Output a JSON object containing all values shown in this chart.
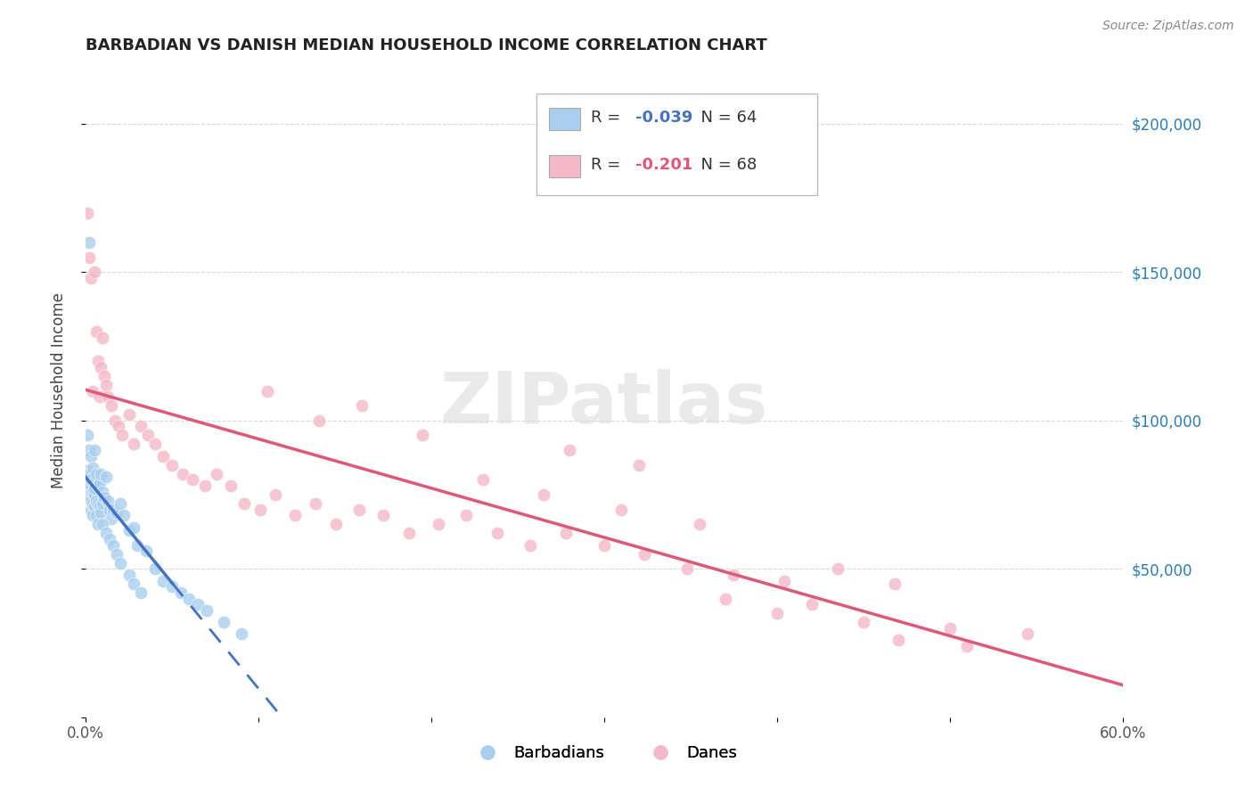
{
  "title": "BARBADIAN VS DANISH MEDIAN HOUSEHOLD INCOME CORRELATION CHART",
  "source": "Source: ZipAtlas.com",
  "ylabel": "Median Household Income",
  "xlim": [
    0.0,
    0.6
  ],
  "ylim": [
    0,
    220000
  ],
  "bg_color": "#ffffff",
  "grid_color": "#d0d0d0",
  "barbadian_R": "-0.039",
  "barbadian_N": "64",
  "danish_R": "-0.201",
  "danish_N": "68",
  "barbadian_color": "#aacfee",
  "danish_color": "#f5b8c8",
  "barbadian_line_color": "#4472c4",
  "danish_line_color": "#e05878",
  "xtick_positions": [
    0.0,
    0.1,
    0.2,
    0.3,
    0.4,
    0.5,
    0.6
  ],
  "xtick_labels": [
    "0.0%",
    "",
    "",
    "",
    "",
    "",
    "60.0%"
  ],
  "ytick_values": [
    0,
    50000,
    100000,
    150000,
    200000
  ],
  "ytick_labels_right": [
    "",
    "$50,000",
    "$100,000",
    "$150,000",
    "$200,000"
  ],
  "barbadian_x": [
    0.001,
    0.001,
    0.001,
    0.002,
    0.002,
    0.002,
    0.002,
    0.003,
    0.003,
    0.003,
    0.003,
    0.003,
    0.004,
    0.004,
    0.004,
    0.004,
    0.005,
    0.005,
    0.005,
    0.005,
    0.005,
    0.006,
    0.006,
    0.006,
    0.007,
    0.007,
    0.007,
    0.008,
    0.008,
    0.009,
    0.009,
    0.01,
    0.01,
    0.011,
    0.012,
    0.013,
    0.014,
    0.015,
    0.016,
    0.018,
    0.02,
    0.022,
    0.025,
    0.028,
    0.03,
    0.035,
    0.04,
    0.045,
    0.05,
    0.055,
    0.06,
    0.065,
    0.07,
    0.08,
    0.09,
    0.01,
    0.012,
    0.014,
    0.016,
    0.018,
    0.02,
    0.025,
    0.028,
    0.032
  ],
  "barbadian_y": [
    83000,
    95000,
    78000,
    160000,
    90000,
    82000,
    75000,
    88000,
    78000,
    73000,
    80000,
    70000,
    84000,
    76000,
    72000,
    68000,
    90000,
    79000,
    75000,
    71000,
    77000,
    82000,
    73000,
    68000,
    78000,
    72000,
    65000,
    79000,
    71000,
    82000,
    69000,
    76000,
    72000,
    74000,
    81000,
    73000,
    70000,
    67000,
    70000,
    69000,
    72000,
    68000,
    63000,
    64000,
    58000,
    56000,
    50000,
    46000,
    44000,
    42000,
    40000,
    38000,
    36000,
    32000,
    28000,
    65000,
    62000,
    60000,
    58000,
    55000,
    52000,
    48000,
    45000,
    42000
  ],
  "danish_x": [
    0.001,
    0.002,
    0.003,
    0.004,
    0.005,
    0.006,
    0.007,
    0.008,
    0.009,
    0.01,
    0.011,
    0.012,
    0.013,
    0.015,
    0.017,
    0.019,
    0.021,
    0.025,
    0.028,
    0.032,
    0.036,
    0.04,
    0.045,
    0.05,
    0.056,
    0.062,
    0.069,
    0.076,
    0.084,
    0.092,
    0.101,
    0.11,
    0.121,
    0.133,
    0.145,
    0.158,
    0.172,
    0.187,
    0.204,
    0.22,
    0.238,
    0.257,
    0.278,
    0.3,
    0.323,
    0.348,
    0.375,
    0.404,
    0.435,
    0.468,
    0.23,
    0.265,
    0.31,
    0.355,
    0.4,
    0.45,
    0.5,
    0.545,
    0.28,
    0.32,
    0.37,
    0.42,
    0.47,
    0.51,
    0.16,
    0.195,
    0.105,
    0.135
  ],
  "danish_y": [
    170000,
    155000,
    148000,
    110000,
    150000,
    130000,
    120000,
    108000,
    118000,
    128000,
    115000,
    112000,
    108000,
    105000,
    100000,
    98000,
    95000,
    102000,
    92000,
    98000,
    95000,
    92000,
    88000,
    85000,
    82000,
    80000,
    78000,
    82000,
    78000,
    72000,
    70000,
    75000,
    68000,
    72000,
    65000,
    70000,
    68000,
    62000,
    65000,
    68000,
    62000,
    58000,
    62000,
    58000,
    55000,
    50000,
    48000,
    46000,
    50000,
    45000,
    80000,
    75000,
    70000,
    65000,
    35000,
    32000,
    30000,
    28000,
    90000,
    85000,
    40000,
    38000,
    26000,
    24000,
    105000,
    95000,
    110000,
    100000
  ]
}
